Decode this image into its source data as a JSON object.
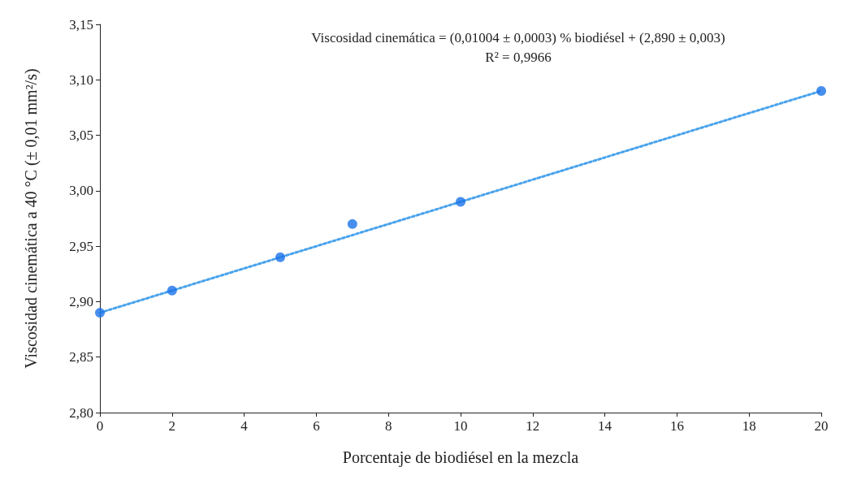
{
  "chart_data": {
    "type": "scatter",
    "xlabel": "Porcentaje de biodiésel en la mezcla",
    "ylabel": "Viscosidad cinemática a 40 °C (± 0,01 mm²/s)",
    "annotations": [
      "Viscosidad cinemática = (0,01004 ± 0,0003) % biodiésel + (2,890 ± 0,003)",
      "R² = 0,9966"
    ],
    "x": [
      0,
      2,
      5,
      7,
      10,
      20
    ],
    "series": [
      {
        "color": "#1a73e8",
        "values": [
          2.89,
          2.91,
          2.94,
          2.97,
          2.99,
          3.09
        ],
        "marker": "circle"
      },
      {
        "type": "line",
        "color": "#4aa3ec",
        "x": [
          0,
          20
        ],
        "values": [
          2.89,
          3.09
        ],
        "line_style": "dotted",
        "marker": "none"
      }
    ],
    "xlim": [
      0,
      20
    ],
    "xticks": [
      0,
      2,
      4,
      6,
      8,
      10,
      12,
      14,
      16,
      18,
      20
    ],
    "ylim": [
      2.8,
      3.15
    ],
    "yticks": [
      {
        "value": 2.8,
        "label": "2,80"
      },
      {
        "value": 2.85,
        "label": "2,85"
      },
      {
        "value": 2.9,
        "label": "2,90"
      },
      {
        "value": 2.95,
        "label": "2,95"
      },
      {
        "value": 3.0,
        "label": "3,00"
      },
      {
        "value": 3.05,
        "label": "3,05"
      },
      {
        "value": 3.1,
        "label": "3,10"
      },
      {
        "value": 3.15,
        "label": "3,15"
      }
    ],
    "grid": false
  }
}
